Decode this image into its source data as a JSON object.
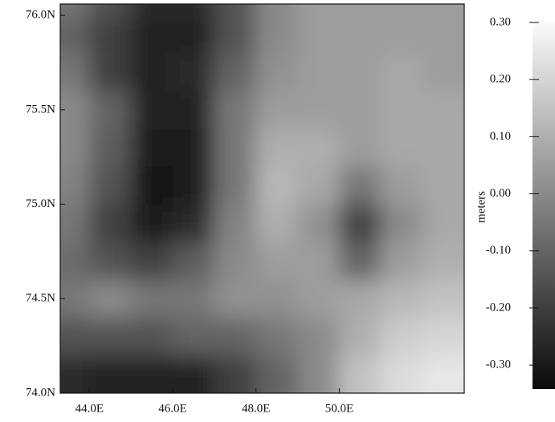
{
  "chart_data": {
    "type": "heatmap",
    "colormap": "gray",
    "x": [
      43.5,
      44.5,
      45.5,
      46.5,
      47.5,
      48.5,
      49.5,
      50.5,
      51.5,
      52.5
    ],
    "y": [
      74.1,
      74.3,
      74.5,
      74.7,
      74.9,
      75.1,
      75.3,
      75.5,
      75.7,
      75.9,
      76.1
    ],
    "z": [
      [
        -0.25,
        -0.28,
        -0.28,
        -0.28,
        -0.2,
        -0.1,
        0.0,
        0.15,
        0.22,
        0.25
      ],
      [
        -0.15,
        -0.15,
        -0.15,
        -0.1,
        -0.1,
        -0.05,
        0.0,
        0.1,
        0.18,
        0.2
      ],
      [
        -0.05,
        0.0,
        -0.05,
        -0.05,
        0.02,
        0.02,
        0.05,
        0.08,
        0.12,
        0.15
      ],
      [
        -0.08,
        -0.15,
        -0.2,
        -0.12,
        0.0,
        0.05,
        0.05,
        -0.1,
        0.05,
        0.1
      ],
      [
        -0.05,
        -0.2,
        -0.3,
        -0.25,
        -0.02,
        0.1,
        0.02,
        -0.2,
        0.0,
        0.08
      ],
      [
        -0.02,
        -0.15,
        -0.32,
        -0.3,
        -0.05,
        0.12,
        0.08,
        -0.05,
        0.05,
        0.08
      ],
      [
        0.0,
        -0.12,
        -0.3,
        -0.3,
        -0.05,
        0.1,
        0.1,
        0.05,
        0.08,
        0.08
      ],
      [
        0.0,
        -0.1,
        -0.28,
        -0.28,
        -0.05,
        0.05,
        0.05,
        0.05,
        0.08,
        0.08
      ],
      [
        -0.05,
        -0.2,
        -0.28,
        -0.25,
        -0.1,
        0.02,
        0.05,
        0.05,
        0.08,
        0.05
      ],
      [
        -0.1,
        -0.2,
        -0.28,
        -0.28,
        -0.15,
        0.0,
        0.05,
        0.05,
        0.05,
        0.05
      ],
      [
        -0.05,
        -0.15,
        -0.25,
        -0.25,
        -0.15,
        0.0,
        0.05,
        0.05,
        0.05,
        0.05
      ]
    ],
    "xlim": [
      43.3,
      53.0
    ],
    "ylim": [
      74.0,
      76.06
    ],
    "xticks": [
      {
        "value": 44,
        "label": "44.0E"
      },
      {
        "value": 46,
        "label": "46.0E"
      },
      {
        "value": 48,
        "label": "48.0E"
      },
      {
        "value": 50,
        "label": "50.0E"
      }
    ],
    "yticks": [
      {
        "value": 74,
        "label": "74.0N"
      },
      {
        "value": 74.5,
        "label": "74.5N"
      },
      {
        "value": 75,
        "label": "75.0N"
      },
      {
        "value": 75.5,
        "label": "75.5N"
      },
      {
        "value": 76,
        "label": "76.0N"
      }
    ],
    "colorbar_label": "meters",
    "clim": [
      -0.342,
      0.3
    ],
    "cticks": [
      {
        "value": 0.3,
        "label": "0.30"
      },
      {
        "value": 0.2,
        "label": "0.20"
      },
      {
        "value": 0.1,
        "label": "0.10"
      },
      {
        "value": 0,
        "label": "0.00"
      },
      {
        "value": -0.1,
        "label": "-0.10"
      },
      {
        "value": -0.2,
        "label": "-0.20"
      },
      {
        "value": -0.3,
        "label": "-0.30"
      }
    ]
  }
}
